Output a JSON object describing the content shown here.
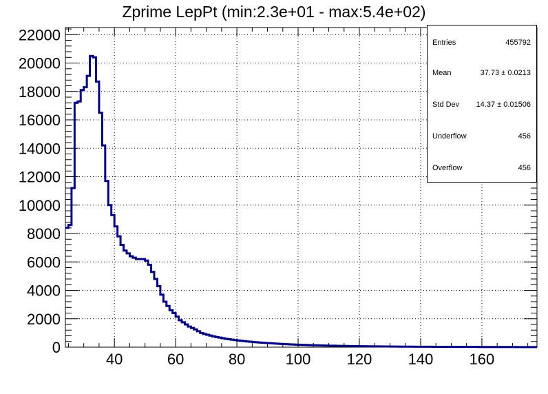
{
  "title": "Zprime LepPt (min:2.3e+01 - max:5.4e+02)",
  "stats": {
    "entries_label": "Entries",
    "entries_value": "455792",
    "mean_label": "Mean",
    "mean_value": "37.73 ± 0.0213",
    "stddev_label": "Std Dev",
    "stddev_value": "14.37 ± 0.01506",
    "underflow_label": "Underflow",
    "underflow_value": "456",
    "overflow_label": "Overflow",
    "overflow_value": "456"
  },
  "chart_data": {
    "type": "histogram-step",
    "title": "Zprime LepPt (min:2.3e+01 - max:5.4e+02)",
    "xlim": [
      24,
      178
    ],
    "ylim": [
      0,
      22500
    ],
    "xticks": [
      40,
      60,
      80,
      100,
      120,
      140,
      160
    ],
    "yticks": [
      0,
      2000,
      4000,
      6000,
      8000,
      10000,
      12000,
      14000,
      16000,
      18000,
      20000,
      22000
    ],
    "grid": true,
    "line_color": "#000080",
    "bin_width": 1,
    "bin_edges_start": 24,
    "values": [
      8400,
      8600,
      11200,
      17200,
      17300,
      18100,
      18300,
      19100,
      20500,
      20400,
      18700,
      16500,
      14200,
      11700,
      10000,
      9300,
      8500,
      7800,
      7200,
      6800,
      6600,
      6400,
      6300,
      6200,
      6200,
      6200,
      6100,
      5800,
      5300,
      4800,
      4300,
      3700,
      3200,
      2900,
      2600,
      2400,
      2150,
      1900,
      1750,
      1600,
      1450,
      1350,
      1250,
      1120,
      1000,
      930,
      870,
      810,
      760,
      710,
      670,
      630,
      590,
      560,
      530,
      500,
      475,
      450,
      425,
      400,
      380,
      360,
      345,
      330,
      315,
      300,
      285,
      270,
      255,
      240,
      228,
      216,
      205,
      195,
      186,
      178,
      170,
      162,
      155,
      148,
      141,
      135,
      129,
      123,
      117,
      111,
      106,
      101,
      96,
      92,
      88,
      84,
      80,
      76,
      73,
      70,
      67,
      64,
      61,
      58,
      56,
      54,
      52,
      50,
      48,
      46,
      44,
      42,
      40,
      38,
      37,
      36,
      35,
      34,
      33,
      32,
      31,
      30,
      29,
      28,
      27,
      26,
      25,
      24,
      23,
      22,
      21,
      20,
      19,
      18,
      18,
      17,
      17,
      16,
      16,
      15,
      15,
      14,
      14,
      13,
      13,
      12,
      12,
      11,
      11,
      10,
      10,
      9,
      9,
      8,
      8,
      7
    ]
  }
}
